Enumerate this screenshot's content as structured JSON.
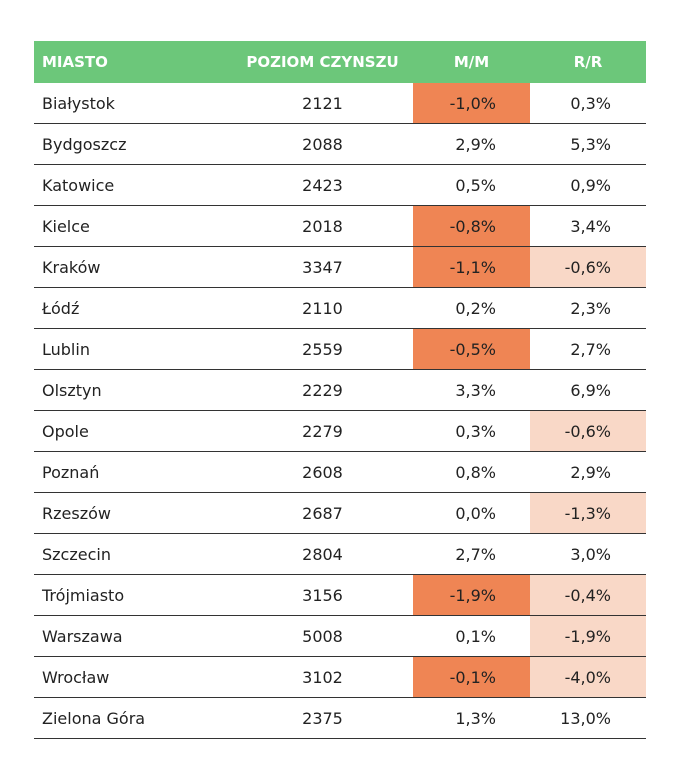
{
  "columns": {
    "city": "MIASTO",
    "rent": "POZIOM CZYNSZU",
    "mm": "M/M",
    "rr": "R/R"
  },
  "rows": [
    {
      "city": "Białystok",
      "rent": "2121",
      "mm": "-1,0%",
      "rr": "0,3%",
      "mm_neg": true,
      "rr_neg": false
    },
    {
      "city": "Bydgoszcz",
      "rent": "2088",
      "mm": "2,9%",
      "rr": "5,3%",
      "mm_neg": false,
      "rr_neg": false
    },
    {
      "city": "Katowice",
      "rent": "2423",
      "mm": "0,5%",
      "rr": "0,9%",
      "mm_neg": false,
      "rr_neg": false
    },
    {
      "city": "Kielce",
      "rent": "2018",
      "mm": "-0,8%",
      "rr": "3,4%",
      "mm_neg": true,
      "rr_neg": false
    },
    {
      "city": "Kraków",
      "rent": "3347",
      "mm": "-1,1%",
      "rr": "-0,6%",
      "mm_neg": true,
      "rr_neg": true
    },
    {
      "city": "Łódź",
      "rent": "2110",
      "mm": "0,2%",
      "rr": "2,3%",
      "mm_neg": false,
      "rr_neg": false
    },
    {
      "city": "Lublin",
      "rent": "2559",
      "mm": "-0,5%",
      "rr": "2,7%",
      "mm_neg": true,
      "rr_neg": false
    },
    {
      "city": "Olsztyn",
      "rent": "2229",
      "mm": "3,3%",
      "rr": "6,9%",
      "mm_neg": false,
      "rr_neg": false
    },
    {
      "city": "Opole",
      "rent": "2279",
      "mm": "0,3%",
      "rr": "-0,6%",
      "mm_neg": false,
      "rr_neg": true
    },
    {
      "city": "Poznań",
      "rent": "2608",
      "mm": "0,8%",
      "rr": "2,9%",
      "mm_neg": false,
      "rr_neg": false
    },
    {
      "city": "Rzeszów",
      "rent": "2687",
      "mm": "0,0%",
      "rr": "-1,3%",
      "mm_neg": false,
      "rr_neg": true
    },
    {
      "city": "Szczecin",
      "rent": "2804",
      "mm": "2,7%",
      "rr": "3,0%",
      "mm_neg": false,
      "rr_neg": false
    },
    {
      "city": "Trójmiasto",
      "rent": "3156",
      "mm": "-1,9%",
      "rr": "-0,4%",
      "mm_neg": true,
      "rr_neg": true
    },
    {
      "city": "Warszawa",
      "rent": "5008",
      "mm": "0,1%",
      "rr": "-1,9%",
      "mm_neg": false,
      "rr_neg": true
    },
    {
      "city": "Wrocław",
      "rent": "3102",
      "mm": "-0,1%",
      "rr": "-4,0%",
      "mm_neg": true,
      "rr_neg": true
    },
    {
      "city": "Zielona Góra",
      "rent": "2375",
      "mm": "1,3%",
      "rr": "13,0%",
      "mm_neg": false,
      "rr_neg": false
    }
  ],
  "colors": {
    "header_bg": "#6cc77a",
    "mm_negative_bg": "#ef8554",
    "rr_negative_bg": "#f9d8c7"
  }
}
